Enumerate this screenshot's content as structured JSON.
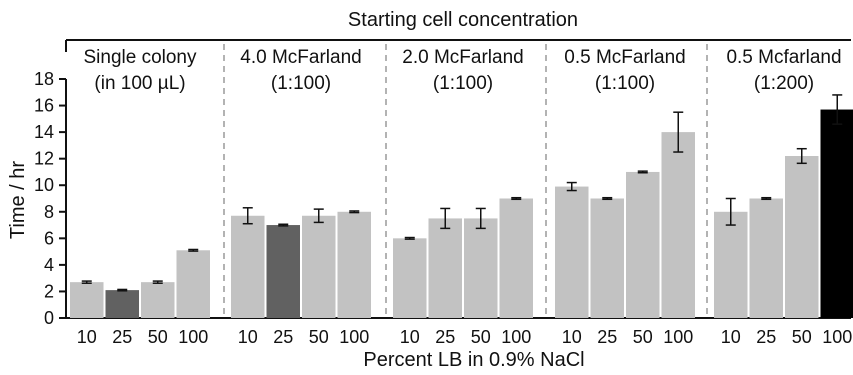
{
  "chart_data": {
    "type": "bar",
    "title": "Starting cell concentration",
    "xlabel": "Percent LB in 0.9% NaCl",
    "ylabel": "Time / hr",
    "ylim": [
      0,
      18
    ],
    "yticks": [
      0,
      2,
      4,
      6,
      8,
      10,
      12,
      14,
      16,
      18
    ],
    "grid": false,
    "colors": {
      "default": "#c2c2c2",
      "dark": "#616161",
      "black": "#000000"
    },
    "groups": [
      {
        "label_line1": "Single colony",
        "label_line2": "(in 100 µL)",
        "categories": [
          "10",
          "25",
          "50",
          "100"
        ],
        "values": [
          2.7,
          2.1,
          2.7,
          5.1
        ],
        "errors": [
          0.08,
          0.05,
          0.08,
          0.06
        ],
        "highlight": [
          null,
          "dark",
          null,
          null
        ]
      },
      {
        "label_line1": "4.0 McFarland",
        "label_line2": "(1:100)",
        "categories": [
          "10",
          "25",
          "50",
          "100"
        ],
        "values": [
          7.7,
          7.0,
          7.7,
          8.0
        ],
        "errors": [
          0.6,
          0.06,
          0.5,
          0.06
        ],
        "highlight": [
          null,
          "dark",
          null,
          null
        ]
      },
      {
        "label_line1": "2.0 McFarland",
        "label_line2": "(1:100)",
        "categories": [
          "10",
          "25",
          "50",
          "100"
        ],
        "values": [
          6.0,
          7.5,
          7.5,
          9.0
        ],
        "errors": [
          0.06,
          0.75,
          0.75,
          0.06
        ],
        "highlight": [
          null,
          null,
          null,
          null
        ]
      },
      {
        "label_line1": "0.5 McFarland",
        "label_line2": "(1:100)",
        "categories": [
          "10",
          "25",
          "50",
          "100"
        ],
        "values": [
          9.9,
          9.0,
          11.0,
          14.0
        ],
        "errors": [
          0.3,
          0.06,
          0.06,
          1.5
        ],
        "highlight": [
          null,
          null,
          null,
          null
        ]
      },
      {
        "label_line1": "0.5 Mcfarland",
        "label_line2": "(1:200)",
        "categories": [
          "10",
          "25",
          "50",
          "100"
        ],
        "values": [
          8.0,
          9.0,
          12.2,
          15.7
        ],
        "errors": [
          1.0,
          0.06,
          0.55,
          1.1
        ],
        "highlight": [
          null,
          null,
          null,
          "black"
        ]
      }
    ]
  }
}
